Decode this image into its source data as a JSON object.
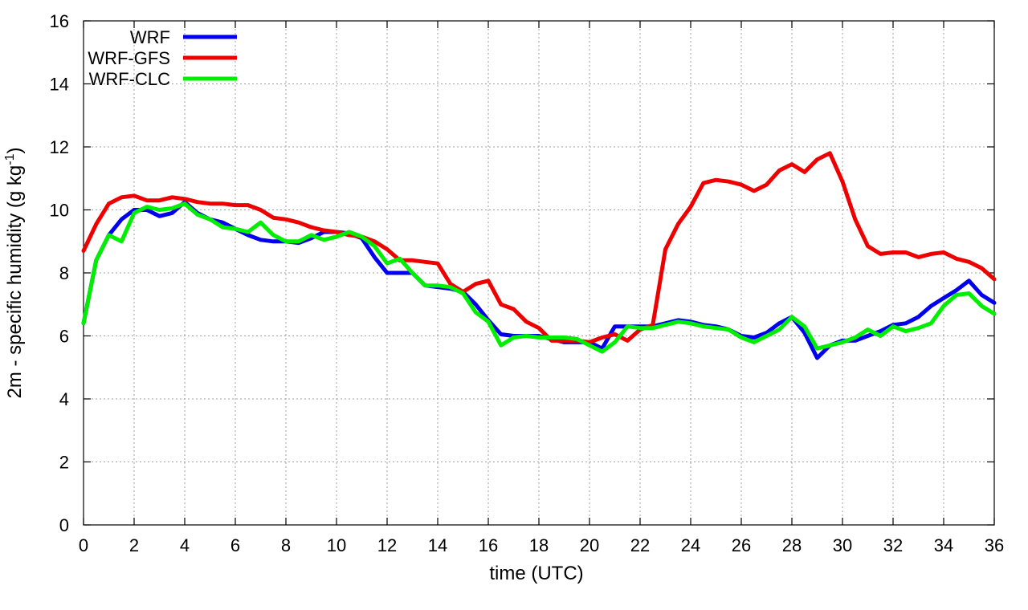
{
  "chart_data": {
    "type": "line",
    "title": "",
    "xlabel": "time (UTC)",
    "ylabel_main": "2m - specific humidity (g kg",
    "ylabel_sup": "-1",
    "ylabel_close": ")",
    "xlim": [
      0,
      36
    ],
    "ylim": [
      0,
      16
    ],
    "xticks": [
      0,
      2,
      4,
      6,
      8,
      10,
      12,
      14,
      16,
      18,
      20,
      22,
      24,
      26,
      28,
      30,
      32,
      34,
      36
    ],
    "yticks": [
      0,
      2,
      4,
      6,
      8,
      10,
      12,
      14,
      16
    ],
    "grid": true,
    "legend_position": "top-left",
    "series": [
      {
        "name": "WRF",
        "color": "#0000ee",
        "points": [
          [
            0,
            6.4
          ],
          [
            0.5,
            8.4
          ],
          [
            1,
            9.2
          ],
          [
            1.5,
            9.7
          ],
          [
            2,
            10.0
          ],
          [
            2.5,
            10.0
          ],
          [
            3,
            9.8
          ],
          [
            3.5,
            9.9
          ],
          [
            4,
            10.25
          ],
          [
            4.5,
            9.9
          ],
          [
            5,
            9.7
          ],
          [
            5.5,
            9.6
          ],
          [
            6,
            9.4
          ],
          [
            6.5,
            9.2
          ],
          [
            7,
            9.05
          ],
          [
            7.5,
            9.0
          ],
          [
            8,
            9.0
          ],
          [
            8.5,
            8.95
          ],
          [
            9,
            9.1
          ],
          [
            9.5,
            9.3
          ],
          [
            10,
            9.3
          ],
          [
            10.5,
            9.25
          ],
          [
            11,
            9.1
          ],
          [
            11.5,
            8.5
          ],
          [
            12,
            8.0
          ],
          [
            12.5,
            8.0
          ],
          [
            13,
            8.0
          ],
          [
            13.5,
            7.6
          ],
          [
            14,
            7.55
          ],
          [
            14.5,
            7.5
          ],
          [
            15,
            7.4
          ],
          [
            15.5,
            7.0
          ],
          [
            16,
            6.5
          ],
          [
            16.5,
            6.05
          ],
          [
            17,
            6.0
          ],
          [
            17.5,
            6.0
          ],
          [
            18,
            6.0
          ],
          [
            18.5,
            5.9
          ],
          [
            19,
            5.8
          ],
          [
            19.5,
            5.8
          ],
          [
            20,
            5.8
          ],
          [
            20.5,
            5.6
          ],
          [
            21,
            6.3
          ],
          [
            21.5,
            6.3
          ],
          [
            22,
            6.3
          ],
          [
            22.5,
            6.3
          ],
          [
            23,
            6.4
          ],
          [
            23.5,
            6.5
          ],
          [
            24,
            6.45
          ],
          [
            24.5,
            6.35
          ],
          [
            25,
            6.3
          ],
          [
            25.5,
            6.2
          ],
          [
            26,
            6.0
          ],
          [
            26.5,
            5.95
          ],
          [
            27,
            6.1
          ],
          [
            27.5,
            6.4
          ],
          [
            28,
            6.6
          ],
          [
            28.5,
            6.1
          ],
          [
            29,
            5.3
          ],
          [
            29.5,
            5.7
          ],
          [
            30,
            5.85
          ],
          [
            30.5,
            5.85
          ],
          [
            31,
            6.0
          ],
          [
            31.5,
            6.15
          ],
          [
            32,
            6.35
          ],
          [
            32.5,
            6.4
          ],
          [
            33,
            6.6
          ],
          [
            33.5,
            6.95
          ],
          [
            34,
            7.2
          ],
          [
            34.5,
            7.45
          ],
          [
            35,
            7.75
          ],
          [
            35.5,
            7.3
          ],
          [
            36,
            7.05
          ]
        ]
      },
      {
        "name": "WRF-GFS",
        "color": "#ee0000",
        "points": [
          [
            0,
            8.7
          ],
          [
            0.5,
            9.55
          ],
          [
            1,
            10.2
          ],
          [
            1.5,
            10.4
          ],
          [
            2,
            10.45
          ],
          [
            2.5,
            10.3
          ],
          [
            3,
            10.3
          ],
          [
            3.5,
            10.4
          ],
          [
            4,
            10.35
          ],
          [
            4.5,
            10.25
          ],
          [
            5,
            10.2
          ],
          [
            5.5,
            10.2
          ],
          [
            6,
            10.15
          ],
          [
            6.5,
            10.15
          ],
          [
            7,
            10.0
          ],
          [
            7.5,
            9.75
          ],
          [
            8,
            9.7
          ],
          [
            8.5,
            9.6
          ],
          [
            9,
            9.45
          ],
          [
            9.5,
            9.35
          ],
          [
            10,
            9.3
          ],
          [
            10.5,
            9.2
          ],
          [
            11,
            9.15
          ],
          [
            11.5,
            9.0
          ],
          [
            12,
            8.75
          ],
          [
            12.5,
            8.4
          ],
          [
            13,
            8.4
          ],
          [
            13.5,
            8.35
          ],
          [
            14,
            8.3
          ],
          [
            14.5,
            7.65
          ],
          [
            15,
            7.4
          ],
          [
            15.5,
            7.65
          ],
          [
            16,
            7.75
          ],
          [
            16.5,
            7.0
          ],
          [
            17,
            6.85
          ],
          [
            17.5,
            6.45
          ],
          [
            18,
            6.25
          ],
          [
            18.5,
            5.85
          ],
          [
            19,
            5.85
          ],
          [
            19.5,
            5.85
          ],
          [
            20,
            5.8
          ],
          [
            20.5,
            5.95
          ],
          [
            21,
            6.05
          ],
          [
            21.5,
            5.85
          ],
          [
            22,
            6.2
          ],
          [
            22.5,
            6.35
          ],
          [
            23,
            8.75
          ],
          [
            23.5,
            9.55
          ],
          [
            24,
            10.1
          ],
          [
            24.5,
            10.85
          ],
          [
            25,
            10.95
          ],
          [
            25.5,
            10.9
          ],
          [
            26,
            10.8
          ],
          [
            26.5,
            10.6
          ],
          [
            27,
            10.8
          ],
          [
            27.5,
            11.25
          ],
          [
            28,
            11.45
          ],
          [
            28.5,
            11.2
          ],
          [
            29,
            11.6
          ],
          [
            29.5,
            11.8
          ],
          [
            30,
            10.9
          ],
          [
            30.5,
            9.7
          ],
          [
            31,
            8.85
          ],
          [
            31.5,
            8.6
          ],
          [
            32,
            8.65
          ],
          [
            32.5,
            8.65
          ],
          [
            33,
            8.5
          ],
          [
            33.5,
            8.6
          ],
          [
            34,
            8.65
          ],
          [
            34.5,
            8.45
          ],
          [
            35,
            8.35
          ],
          [
            35.5,
            8.15
          ],
          [
            36,
            7.8
          ]
        ]
      },
      {
        "name": "WRF-CLC",
        "color": "#00ee00",
        "points": [
          [
            0,
            6.4
          ],
          [
            0.5,
            8.4
          ],
          [
            1,
            9.2
          ],
          [
            1.5,
            9.0
          ],
          [
            2,
            9.9
          ],
          [
            2.5,
            10.1
          ],
          [
            3,
            10.0
          ],
          [
            3.5,
            10.05
          ],
          [
            4,
            10.2
          ],
          [
            4.5,
            9.85
          ],
          [
            5,
            9.7
          ],
          [
            5.5,
            9.45
          ],
          [
            6,
            9.4
          ],
          [
            6.5,
            9.3
          ],
          [
            7,
            9.6
          ],
          [
            7.5,
            9.2
          ],
          [
            8,
            9.0
          ],
          [
            8.5,
            9.0
          ],
          [
            9,
            9.2
          ],
          [
            9.5,
            9.05
          ],
          [
            10,
            9.15
          ],
          [
            10.5,
            9.3
          ],
          [
            11,
            9.15
          ],
          [
            11.5,
            8.85
          ],
          [
            12,
            8.3
          ],
          [
            12.5,
            8.45
          ],
          [
            13,
            8.0
          ],
          [
            13.5,
            7.6
          ],
          [
            14,
            7.6
          ],
          [
            14.5,
            7.55
          ],
          [
            15,
            7.35
          ],
          [
            15.5,
            6.75
          ],
          [
            16,
            6.45
          ],
          [
            16.5,
            5.7
          ],
          [
            17,
            5.95
          ],
          [
            17.5,
            6.0
          ],
          [
            18,
            5.95
          ],
          [
            18.5,
            5.95
          ],
          [
            19,
            5.95
          ],
          [
            19.5,
            5.9
          ],
          [
            20,
            5.7
          ],
          [
            20.5,
            5.5
          ],
          [
            21,
            5.8
          ],
          [
            21.5,
            6.3
          ],
          [
            22,
            6.25
          ],
          [
            22.5,
            6.25
          ],
          [
            23,
            6.35
          ],
          [
            23.5,
            6.45
          ],
          [
            24,
            6.4
          ],
          [
            24.5,
            6.3
          ],
          [
            25,
            6.25
          ],
          [
            25.5,
            6.2
          ],
          [
            26,
            5.95
          ],
          [
            26.5,
            5.8
          ],
          [
            27,
            6.0
          ],
          [
            27.5,
            6.2
          ],
          [
            28,
            6.6
          ],
          [
            28.5,
            6.3
          ],
          [
            29,
            5.6
          ],
          [
            29.5,
            5.7
          ],
          [
            30,
            5.8
          ],
          [
            30.5,
            5.95
          ],
          [
            31,
            6.2
          ],
          [
            31.5,
            6.0
          ],
          [
            32,
            6.3
          ],
          [
            32.5,
            6.15
          ],
          [
            33,
            6.25
          ],
          [
            33.5,
            6.4
          ],
          [
            34,
            6.95
          ],
          [
            34.5,
            7.3
          ],
          [
            35,
            7.35
          ],
          [
            35.5,
            6.95
          ],
          [
            36,
            6.7
          ]
        ]
      }
    ]
  }
}
